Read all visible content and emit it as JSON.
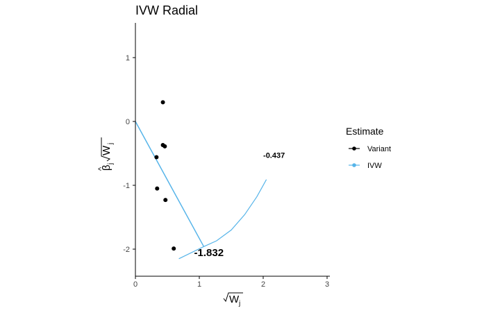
{
  "chart_data": {
    "type": "scatter",
    "title": "IVW Radial",
    "xlim": [
      0,
      3.05
    ],
    "ylim": [
      -2.4,
      1.55
    ],
    "x_ticks": [
      0,
      1,
      2,
      3
    ],
    "y_ticks": [
      1,
      0,
      -1,
      -2
    ],
    "x_tick_labels": [
      "0",
      "1",
      "2",
      "3"
    ],
    "y_tick_labels": [
      "1",
      "0",
      "-1",
      "-2"
    ],
    "grid": false,
    "legend_position": "right",
    "legend": {
      "title": "Estimate",
      "items": [
        {
          "label": "Variant",
          "color": "#000000"
        },
        {
          "label": "IVW",
          "color": "#56B4E9"
        }
      ]
    },
    "points": [
      {
        "x": 0.43,
        "y": 0.3
      },
      {
        "x": 0.43,
        "y": -0.37
      },
      {
        "x": 0.46,
        "y": -0.39
      },
      {
        "x": 0.33,
        "y": -0.56
      },
      {
        "x": 0.34,
        "y": -1.05
      },
      {
        "x": 0.47,
        "y": -1.23
      },
      {
        "x": 0.6,
        "y": -1.99
      }
    ],
    "ivw_line": {
      "x": [
        0,
        1.07
      ],
      "y": [
        0,
        -1.96
      ]
    },
    "ivw_arc": {
      "x": [
        0.68,
        1.07,
        1.27,
        1.5,
        1.71,
        1.9,
        2.05
      ],
      "y": [
        -2.15,
        -1.96,
        -1.87,
        -1.7,
        -1.46,
        -1.18,
        -0.91
      ]
    },
    "annotations": [
      {
        "text": "-1.832",
        "x": 1.15,
        "y": -2.11,
        "size": "large"
      },
      {
        "text": "-0.437",
        "x": 2.17,
        "y": -0.57,
        "size": "small"
      }
    ]
  }
}
